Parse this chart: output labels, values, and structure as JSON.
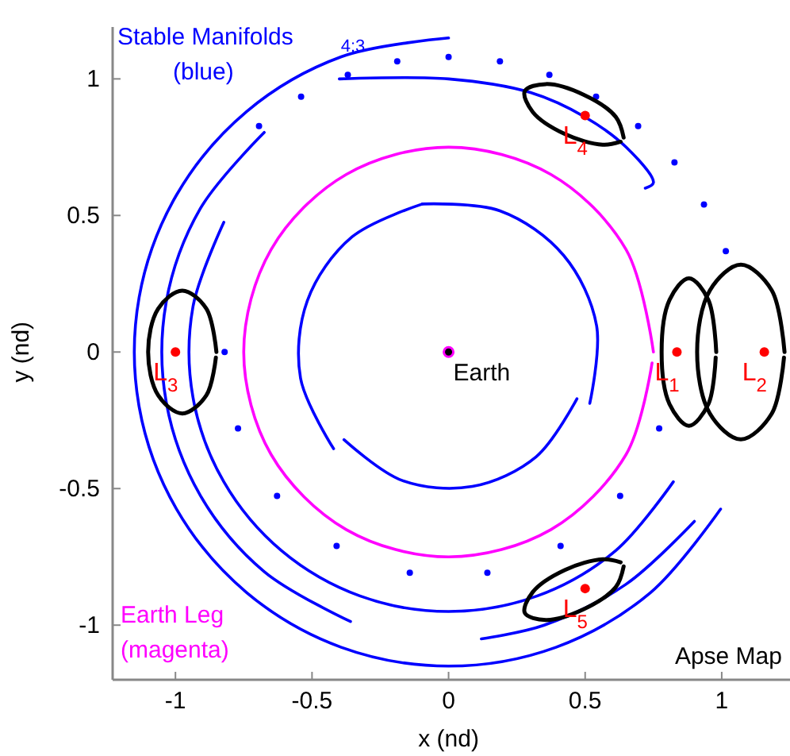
{
  "chart_data": {
    "type": "line",
    "xlabel": "x (nd)",
    "ylabel": "y (nd)",
    "xlim": [
      -1.23,
      1.25
    ],
    "ylim": [
      -1.2,
      1.19
    ],
    "xticks": [
      -1,
      -0.5,
      0,
      0.5,
      1
    ],
    "yticks": [
      -1,
      -0.5,
      0,
      0.5,
      1
    ],
    "grid": false,
    "legend": "left",
    "series": [
      {
        "name": "Stable Manifolds (blue)",
        "color": "#0000ff",
        "x": [
          0,
          -0.393,
          -0.739,
          -0.996,
          -1.133,
          -1.133,
          -0.996,
          -0.739,
          -0.393,
          0,
          0.393,
          0.739,
          0.996
        ],
        "values": [
          1.15,
          1.081,
          0.881,
          0.575,
          0.2,
          -0.2,
          -0.575,
          -0.881,
          -1.081,
          -1.15,
          -1.081,
          -0.881,
          -0.575
        ]
      },
      {
        "color": "#0000ff",
        "x": [
          -0.675,
          -0.909,
          -1.034,
          -1.034,
          -0.909,
          -0.675,
          -0.359
        ],
        "values": [
          0.804,
          0.525,
          0.182,
          -0.182,
          -0.525,
          -0.804,
          -0.987
        ]
      },
      {
        "color": "#0000ff",
        "x": [
          -0.823,
          -0.936,
          -0.936,
          -0.823,
          -0.611,
          -0.325,
          0,
          0.325,
          0.611,
          0.823
        ],
        "values": [
          0.475,
          0.165,
          -0.165,
          -0.475,
          -0.728,
          -0.893,
          -0.95,
          -0.893,
          -0.728,
          -0.475
        ]
      },
      {
        "color": "#0000ff",
        "x": [
          -0.4,
          0,
          0.3,
          0.5,
          0.65,
          0.75,
          0.72
        ],
        "values": [
          1.0,
          1.0,
          0.95,
          0.86,
          0.75,
          0.62,
          0.6
        ]
      },
      {
        "color": "#0000ff",
        "x": [
          0.12,
          0.35,
          0.65,
          0.9
        ],
        "values": [
          -1.05,
          -1.0,
          -0.85,
          -0.62
        ]
      },
      {
        "color": "#0000ff",
        "x": [
          -0.096,
          -0.354,
          -0.517,
          -0.542,
          -0.421
        ],
        "values": [
          0.542,
          0.421,
          0.188,
          -0.096,
          -0.354
        ]
      },
      {
        "color": "#0000ff",
        "x": [
          -0.383,
          -0.171,
          0.087,
          0.321,
          0.47
        ],
        "values": [
          -0.321,
          -0.47,
          -0.492,
          -0.383,
          -0.171
        ]
      },
      {
        "color": "#0000ff",
        "x": [
          0.517,
          0.542,
          0.421,
          0.188,
          -0.096
        ],
        "values": [
          -0.188,
          0.096,
          0.354,
          0.517,
          0.542
        ]
      },
      {
        "type": "scatter",
        "color": "#0000ff",
        "marker": "circle",
        "x": [
          1.015,
          0.935,
          0.827,
          0.694,
          0.54,
          0.369,
          0.188,
          0,
          -0.188,
          -0.369,
          -0.54,
          -0.694
        ],
        "values": [
          0.369,
          0.54,
          0.694,
          0.827,
          0.935,
          1.015,
          1.064,
          1.08,
          1.064,
          1.015,
          0.935,
          0.827
        ]
      },
      {
        "type": "scatter",
        "color": "#0000ff",
        "marker": "circle",
        "x": [
          -0.82,
          -0.771,
          -0.628,
          -0.41,
          -0.142,
          0.142,
          0.41,
          0.628,
          0.771
        ],
        "values": [
          0,
          -0.28,
          -0.527,
          -0.71,
          -0.808,
          -0.808,
          -0.71,
          -0.527,
          -0.28
        ]
      },
      {
        "name": "Earth Leg (magenta)",
        "color": "#ff00ff",
        "x": [
          0.75,
          0.65,
          0.375,
          0,
          -0.375,
          -0.65,
          -0.75,
          -0.65,
          -0.375,
          0,
          0.375,
          0.65,
          0.745
        ],
        "values": [
          0,
          0.375,
          0.65,
          0.75,
          0.65,
          0.375,
          0,
          -0.375,
          -0.65,
          -0.75,
          -0.65,
          -0.375,
          -0.04
        ]
      },
      {
        "color": "#000000",
        "x": [
          -0.85,
          -0.887,
          -0.975,
          -1.063,
          -1.1,
          -1.063,
          -0.975,
          -0.887,
          -0.852
        ],
        "values": [
          0,
          0.159,
          0.225,
          0.159,
          0,
          -0.159,
          -0.225,
          -0.159,
          -0.02
        ]
      },
      {
        "color": "#000000",
        "x": [
          0.98,
          0.951,
          0.88,
          0.809,
          0.78,
          0.809,
          0.88,
          0.951,
          0.978
        ],
        "values": [
          0,
          0.191,
          0.27,
          0.191,
          0,
          -0.191,
          -0.27,
          -0.191,
          -0.02
        ]
      },
      {
        "color": "#000000",
        "x": [
          1.23,
          1.183,
          1.07,
          0.957,
          0.91,
          0.957,
          1.07,
          1.183,
          1.228
        ],
        "values": [
          0,
          0.226,
          0.32,
          0.226,
          0,
          -0.226,
          -0.32,
          -0.226,
          -0.02
        ]
      },
      {
        "color": "#000000",
        "x": [
          0.641,
          0.612,
          0.494,
          0.356,
          0.279,
          0.308,
          0.426,
          0.564,
          0.63
        ],
        "values": [
          0.785,
          0.861,
          0.942,
          0.981,
          0.955,
          0.879,
          0.798,
          0.759,
          0.77
        ]
      },
      {
        "color": "#000000",
        "x": [
          0.641,
          0.612,
          0.494,
          0.356,
          0.279,
          0.308,
          0.426,
          0.564,
          0.63
        ],
        "values": [
          -0.785,
          -0.861,
          -0.942,
          -0.981,
          -0.955,
          -0.879,
          -0.798,
          -0.759,
          -0.77
        ]
      },
      {
        "type": "scatter",
        "color": "#ff0000",
        "marker": "circle",
        "x": [
          0.836,
          1.156,
          -1.0,
          0.5,
          0.5
        ],
        "values": [
          0,
          0,
          0,
          0.866,
          -0.866
        ]
      },
      {
        "type": "scatter",
        "color": "#000000",
        "marker": "circle",
        "x": [
          0
        ],
        "values": [
          0
        ]
      }
    ],
    "annotations": [
      {
        "text": "4:3",
        "x": -0.35,
        "y": 1.1
      },
      {
        "text": "Earth",
        "x": 0,
        "y": 0
      },
      {
        "text": "L$_{1}$",
        "x": 0.836,
        "y": 0
      },
      {
        "text": "L$_{2}$",
        "x": 1.156,
        "y": 0
      },
      {
        "text": "L$_{3}$",
        "x": -1.0,
        "y": 0
      },
      {
        "text": "L$_{4}$",
        "x": 0.5,
        "y": 0.866
      },
      {
        "text": "L$_{5}$",
        "x": 0.5,
        "y": -0.866
      },
      "Apse Map"
    ]
  }
}
